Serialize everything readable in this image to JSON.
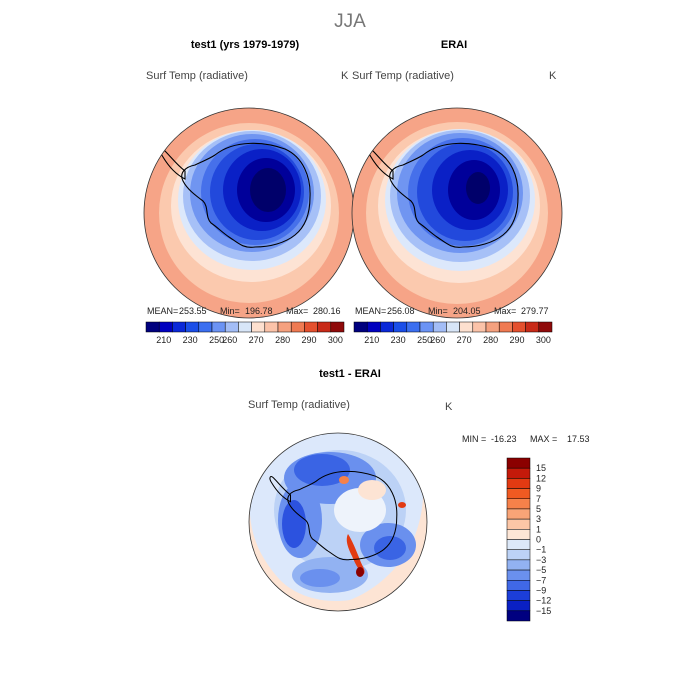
{
  "figure_title": "JJA",
  "chart_data": [
    {
      "type": "heatmap",
      "projection": "south-polar-stereographic",
      "title": "test1 (yrs 1979-1979)",
      "variable": "Surf Temp (radiative)",
      "units": "K",
      "stats": {
        "mean_label": "MEAN=",
        "mean": "253.55",
        "min_label": "Min=",
        "min": "196.78",
        "max_label": "Max=",
        "max": "280.16"
      },
      "colorbar_ticks": [
        "210",
        "230",
        "250",
        "260",
        "270",
        "280",
        "290",
        "300"
      ],
      "colorbar_colors": [
        "#00007e",
        "#0000bf",
        "#0a28d8",
        "#1a4ee8",
        "#3b6ff0",
        "#6b93f4",
        "#a3bdf6",
        "#d8e6f8",
        "#fde0cf",
        "#fbc3a9",
        "#f5a17f",
        "#ef7a52",
        "#e4502e",
        "#c82a18",
        "#8f0a0a"
      ]
    },
    {
      "type": "heatmap",
      "projection": "south-polar-stereographic",
      "title": "ERAI",
      "variable": "Surf Temp (radiative)",
      "units": "K",
      "stats": {
        "mean_label": "MEAN=",
        "mean": "256.08",
        "min_label": "Min=",
        "min": "204.05",
        "max_label": "Max=",
        "max": "279.77"
      },
      "colorbar_ticks": [
        "210",
        "230",
        "250",
        "260",
        "270",
        "280",
        "290",
        "300"
      ],
      "colorbar_colors": [
        "#00007e",
        "#0000bf",
        "#0a28d8",
        "#1a4ee8",
        "#3b6ff0",
        "#6b93f4",
        "#a3bdf6",
        "#d8e6f8",
        "#fde0cf",
        "#fbc3a9",
        "#f5a17f",
        "#ef7a52",
        "#e4502e",
        "#c82a18",
        "#8f0a0a"
      ]
    },
    {
      "type": "heatmap",
      "projection": "south-polar-stereographic",
      "title": "test1 - ERAI",
      "variable": "Surf Temp (radiative)",
      "units": "K",
      "stats": {
        "min_label": "MIN =",
        "min": "-16.23",
        "max_label": "MAX =",
        "max": "17.53"
      },
      "colorbar_ticks": [
        "15",
        "12",
        "9",
        "7",
        "5",
        "3",
        "1",
        "0",
        "−1",
        "−3",
        "−5",
        "−7",
        "−9",
        "−12",
        "−15"
      ],
      "colorbar_colors": [
        "#8b0000",
        "#c41a0a",
        "#e23a12",
        "#f05a22",
        "#f6814a",
        "#f9a477",
        "#fcc6a6",
        "#fde6d6",
        "#dce8f8",
        "#bcd2f6",
        "#92b2f2",
        "#6a90ee",
        "#4068e6",
        "#1c3ed9",
        "#0a20c4",
        "#000080"
      ]
    }
  ]
}
